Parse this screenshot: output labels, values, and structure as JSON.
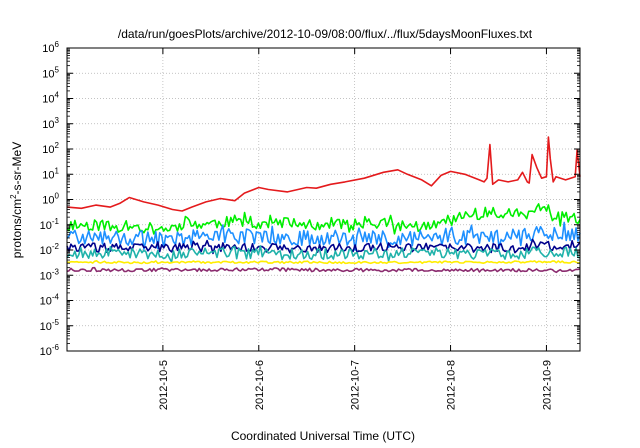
{
  "chart_data": {
    "type": "line",
    "title": "/data/run/goesPlots/archive/2012-10-09/08:00/flux/../flux/5daysMoonFluxes.txt",
    "xlabel": "Coordinated Universal Time (UTC)",
    "ylabel": {
      "pre": "protons/cm",
      "sup": "2",
      "post": "-s-sr-MeV"
    },
    "x_unit": "days since 2012-10-04 00:00 UTC",
    "xlim": [
      0.0,
      5.35
    ],
    "y_scale": "log",
    "ylim": [
      1e-06,
      1000000.0
    ],
    "grid": true,
    "x_ticks": [
      {
        "x": 1,
        "label": "2012-10-5"
      },
      {
        "x": 2,
        "label": "2012-10-6"
      },
      {
        "x": 3,
        "label": "2012-10-7"
      },
      {
        "x": 4,
        "label": "2012-10-8"
      },
      {
        "x": 5,
        "label": "2012-10-9"
      }
    ],
    "y_ticks": [
      {
        "exp": -6
      },
      {
        "exp": -5
      },
      {
        "exp": -4
      },
      {
        "exp": -3
      },
      {
        "exp": -2
      },
      {
        "exp": -1
      },
      {
        "exp": 0
      },
      {
        "exp": 1
      },
      {
        "exp": 2
      },
      {
        "exp": 3
      },
      {
        "exp": 4
      },
      {
        "exp": 5
      },
      {
        "exp": 6
      }
    ],
    "series": [
      {
        "color": "#e41a1c",
        "x": [
          0.0,
          0.15,
          0.3,
          0.45,
          0.55,
          0.65,
          0.8,
          0.95,
          1.1,
          1.2,
          1.3,
          1.45,
          1.6,
          1.75,
          1.85,
          2.0,
          2.1,
          2.3,
          2.5,
          2.6,
          2.75,
          2.9,
          3.1,
          3.3,
          3.45,
          3.55,
          3.7,
          3.8,
          3.9,
          4.0,
          4.15,
          4.3,
          4.35,
          4.38,
          4.41,
          4.44,
          4.5,
          4.6,
          4.7,
          4.75,
          4.8,
          4.82,
          4.85,
          4.9,
          4.95,
          5.0,
          5.02,
          5.04,
          5.07,
          5.1,
          5.2,
          5.3,
          5.32,
          5.35
        ],
        "y": [
          0.5,
          0.45,
          0.6,
          0.5,
          0.7,
          1.2,
          0.8,
          0.6,
          0.4,
          0.35,
          0.5,
          0.8,
          1.1,
          0.9,
          1.8,
          3.0,
          2.5,
          2.0,
          3.0,
          2.8,
          4.0,
          5.0,
          7.0,
          12.0,
          15.0,
          10.0,
          6.0,
          3.5,
          9.0,
          13.0,
          10.0,
          6.0,
          5.0,
          7.0,
          150.0,
          4.0,
          6.0,
          5.0,
          6.0,
          12.0,
          5.0,
          4.5,
          60.0,
          18.0,
          7.0,
          8.0,
          300.0,
          40.0,
          5.0,
          8.0,
          6.0,
          8.0,
          90.0,
          8.0
        ]
      },
      {
        "color": "#00ee00",
        "x": [
          0.0,
          0.3,
          0.5,
          0.7,
          0.9,
          1.1,
          1.3,
          1.6,
          1.8,
          2.0,
          2.3,
          2.5,
          2.8,
          3.0,
          3.2,
          3.4,
          3.6,
          3.8,
          4.0,
          4.2,
          4.4,
          4.6,
          4.8,
          4.9,
          5.0,
          5.1,
          5.2,
          5.35
        ],
        "y": [
          0.09,
          0.1,
          0.08,
          0.09,
          0.07,
          0.08,
          0.1,
          0.12,
          0.15,
          0.1,
          0.12,
          0.09,
          0.12,
          0.1,
          0.12,
          0.1,
          0.09,
          0.08,
          0.15,
          0.25,
          0.3,
          0.3,
          0.25,
          0.45,
          0.3,
          0.2,
          0.2,
          0.17
        ],
        "jitter": 0.45,
        "seed": 11
      },
      {
        "color": "#1e90ff",
        "x": [
          0.0,
          0.5,
          1.0,
          1.5,
          2.0,
          2.5,
          3.0,
          3.5,
          4.0,
          4.5,
          5.0,
          5.35
        ],
        "y": [
          0.035,
          0.03,
          0.03,
          0.035,
          0.035,
          0.03,
          0.03,
          0.032,
          0.03,
          0.035,
          0.05,
          0.04
        ],
        "jitter": 0.6,
        "seed": 23
      },
      {
        "color": "#00008b",
        "x": [
          0.0,
          0.5,
          1.0,
          1.5,
          2.0,
          2.5,
          3.0,
          3.5,
          4.0,
          4.5,
          5.0,
          5.35
        ],
        "y": [
          0.013,
          0.012,
          0.012,
          0.013,
          0.012,
          0.012,
          0.012,
          0.013,
          0.012,
          0.012,
          0.015,
          0.013
        ],
        "jitter": 0.35,
        "seed": 37
      },
      {
        "color": "#20b2aa",
        "x": [
          0.0,
          0.5,
          1.0,
          1.5,
          2.0,
          2.5,
          3.0,
          3.5,
          4.0,
          4.5,
          5.0,
          5.35
        ],
        "y": [
          0.008,
          0.007,
          0.007,
          0.008,
          0.007,
          0.007,
          0.007,
          0.008,
          0.007,
          0.007,
          0.008,
          0.008
        ],
        "jitter": 0.45,
        "seed": 53
      },
      {
        "color": "#ffee00",
        "x": [
          0.0,
          1.0,
          2.0,
          3.0,
          4.0,
          5.0,
          5.35
        ],
        "y": [
          0.0033,
          0.0032,
          0.0033,
          0.0032,
          0.0033,
          0.0034,
          0.0033
        ],
        "jitter": 0.08,
        "seed": 71
      },
      {
        "color": "#8b2c6f",
        "x": [
          0.0,
          1.0,
          2.0,
          3.0,
          4.0,
          5.0,
          5.35
        ],
        "y": [
          0.0016,
          0.0016,
          0.0017,
          0.0016,
          0.0016,
          0.0016,
          0.0016
        ],
        "jitter": 0.12,
        "seed": 97
      }
    ]
  }
}
